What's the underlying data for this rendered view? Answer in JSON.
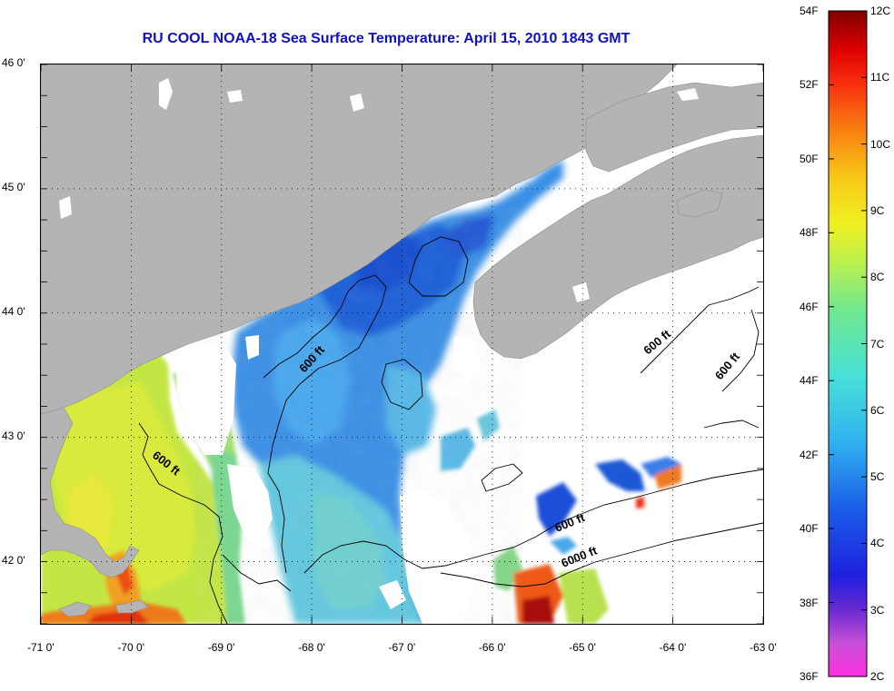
{
  "title": "RU COOL  NOAA-18  Sea Surface Temperature:  April 15, 2010 1843 GMT",
  "map": {
    "lon_range": [
      -71,
      -63
    ],
    "lat_range": [
      41.5,
      46
    ],
    "lon_ticks": [
      "-71 0'",
      "-70 0'",
      "-69 0'",
      "-68 0'",
      "-67 0'",
      "-66 0'",
      "-65 0'",
      "-64 0'",
      "-63 0'"
    ],
    "lat_ticks": [
      "46 0'",
      "45 0'",
      "44 0'",
      "43 0'",
      "42 0'"
    ],
    "contour_labels": [
      "600 ft",
      "600 ft",
      "600 ft",
      "600 ft",
      "600 ft",
      "6000 ft"
    ],
    "colors": {
      "land": "#b4b4b4",
      "cloud": "#ffffff",
      "contour": "#000000"
    }
  },
  "colorbar": {
    "fahrenheit_labels": [
      "54F",
      "52F",
      "50F",
      "48F",
      "46F",
      "44F",
      "42F",
      "40F",
      "38F",
      "36F"
    ],
    "celsius_labels": [
      "12C",
      "11C",
      "10C",
      "9C",
      "8C",
      "7C",
      "6C",
      "5C",
      "4C",
      "3C",
      "2C"
    ],
    "range_c": [
      2,
      12
    ]
  }
}
